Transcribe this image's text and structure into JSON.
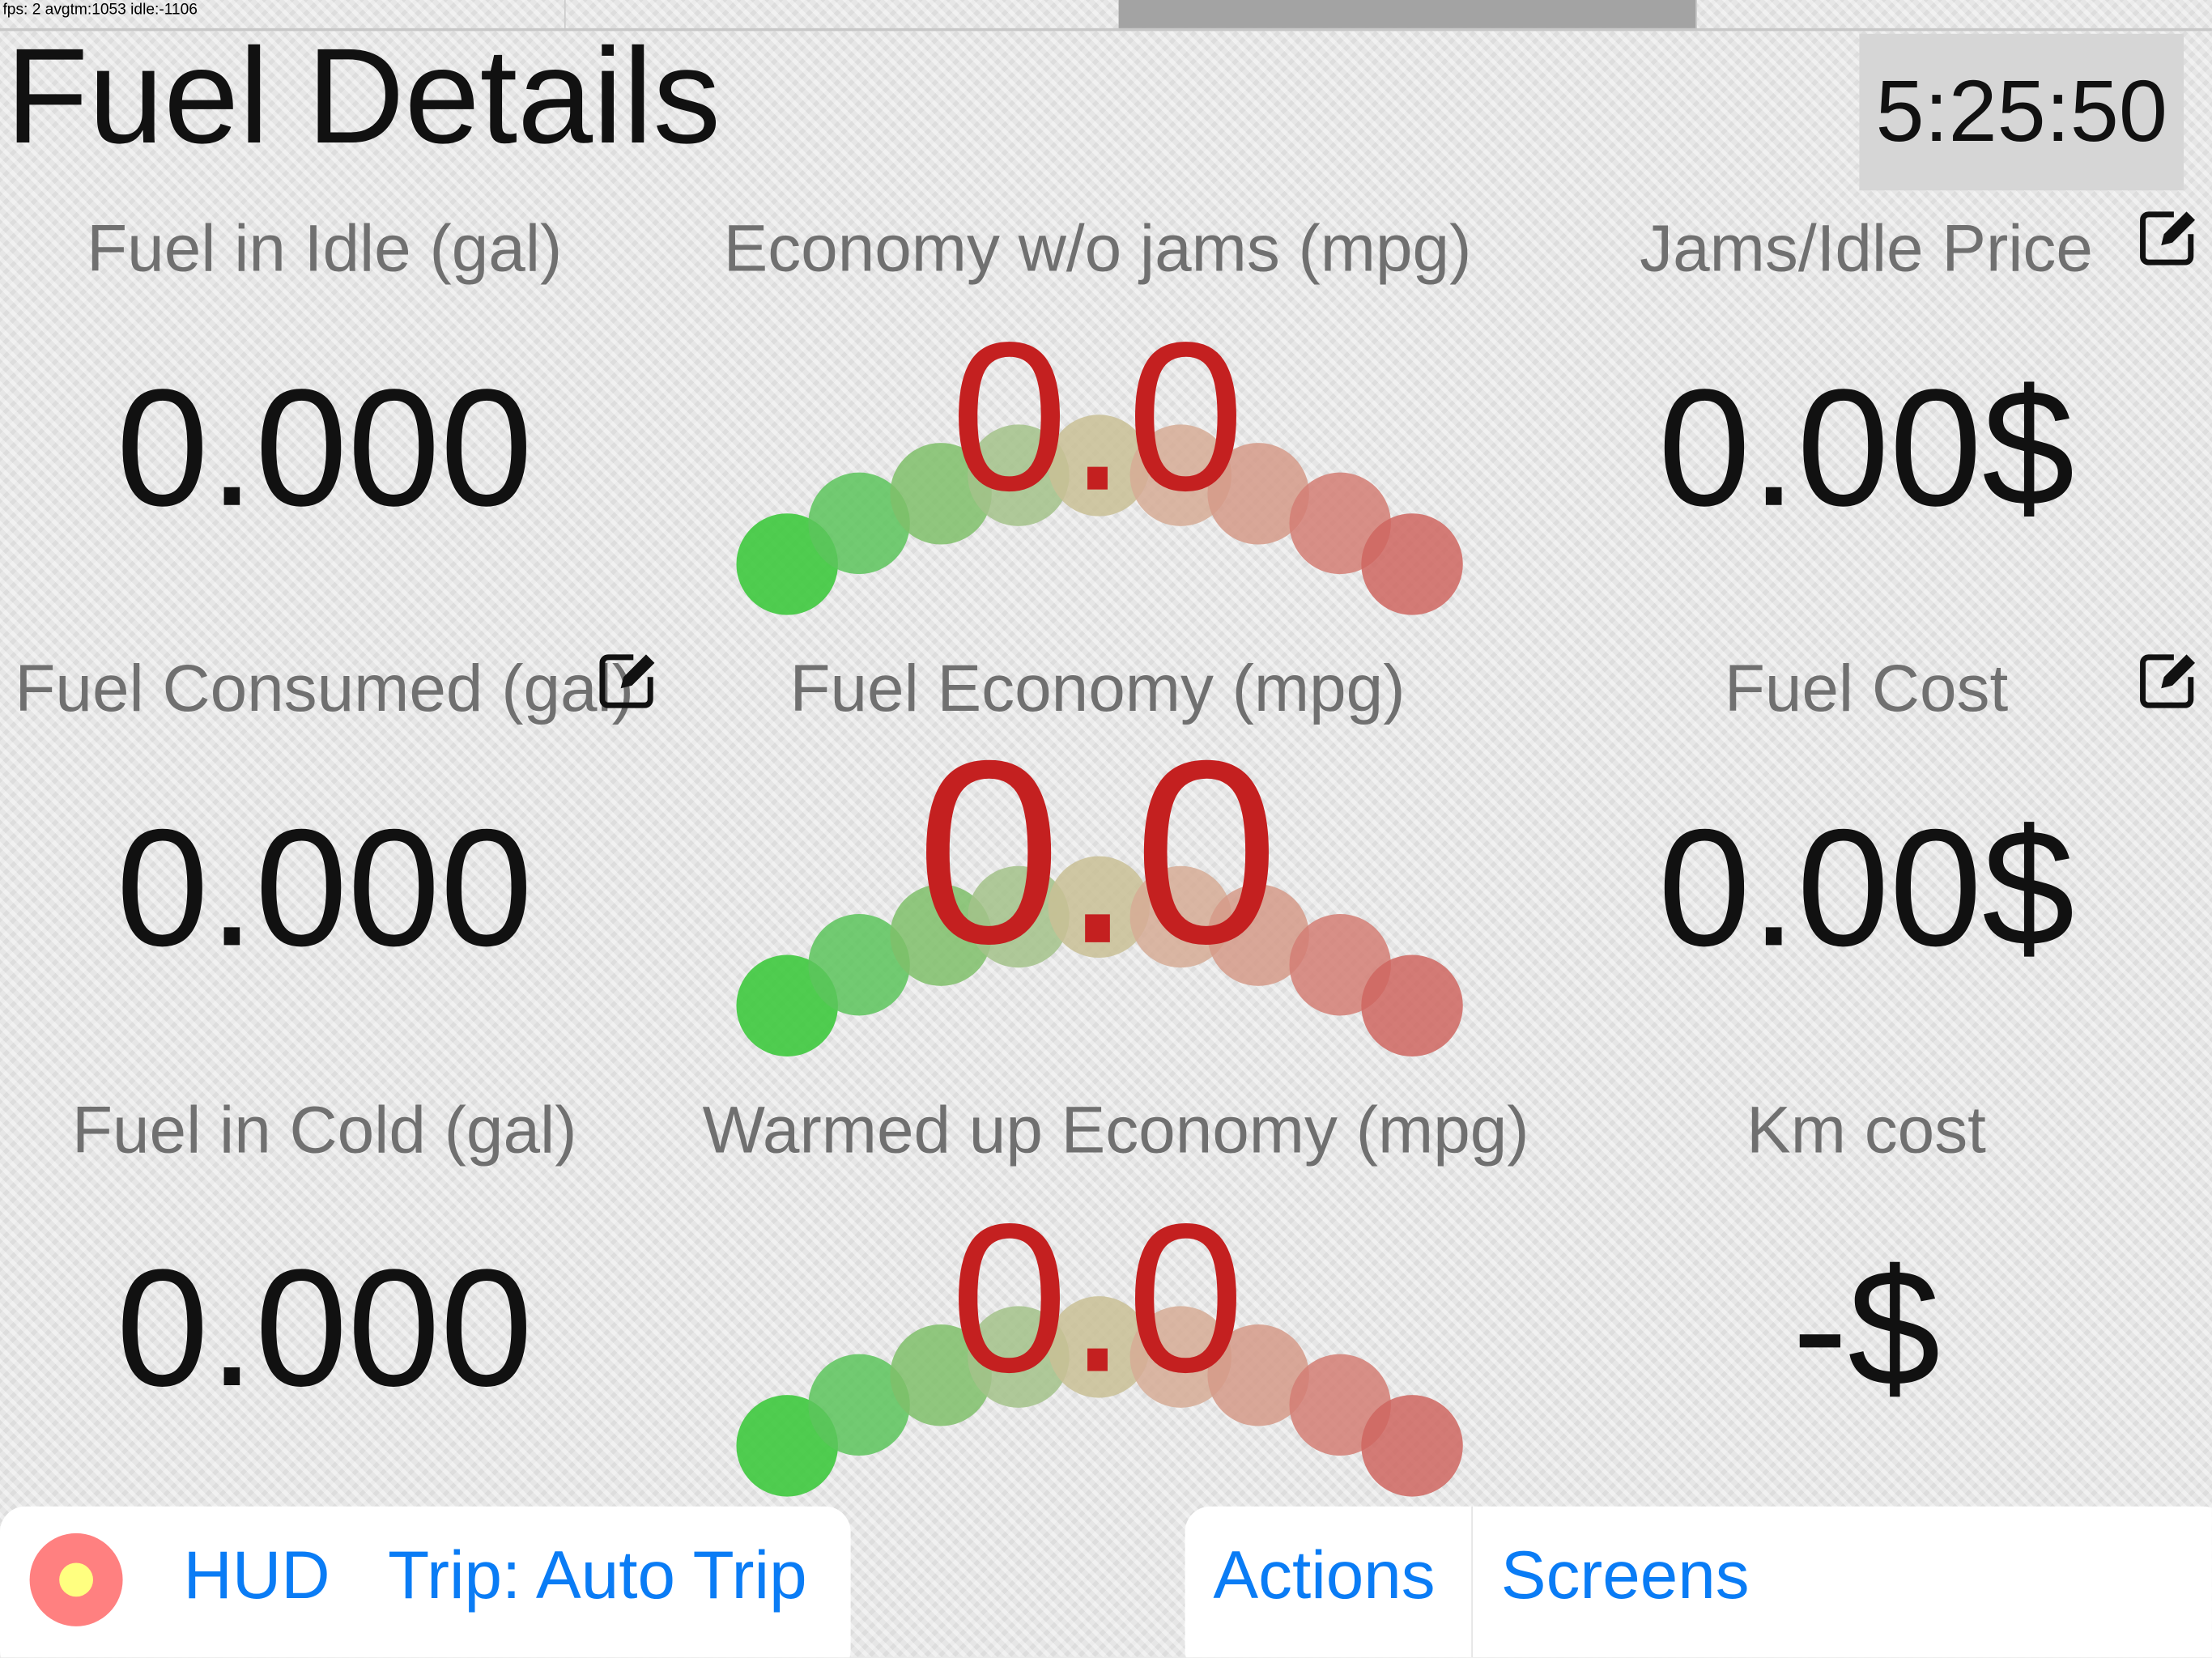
{
  "status_bar": {
    "fps_text": "fps: 2 avgtm:1053 idle:-1106"
  },
  "header": {
    "title": "Fuel Details",
    "clock": "5:25:50"
  },
  "cells": [
    {
      "label": "Fuel in Idle (gal)",
      "value": "0.000"
    },
    {
      "label": "Economy w/o jams (mpg)",
      "value": "0.0",
      "type": "gauge"
    },
    {
      "label": "Jams/Idle Price",
      "value": "0.00$",
      "editable": true
    },
    {
      "label": "Fuel Consumed (gal)",
      "value": "0.000",
      "editable": true
    },
    {
      "label": "Fuel Economy (mpg)",
      "value": "0.0",
      "type": "gauge"
    },
    {
      "label": "Fuel Cost",
      "value": "0.00$",
      "editable": true
    },
    {
      "label": "Fuel in Cold (gal)",
      "value": "0.000"
    },
    {
      "label": "Warmed up Economy (mpg)",
      "value": "0.0",
      "type": "gauge"
    },
    {
      "label": "Km cost",
      "value": "-$"
    }
  ],
  "gauge_colors": [
    "#3ec93e",
    "#5cc45c",
    "#7fbf6a",
    "#a3c28a",
    "#c9bf95",
    "#d6ab95",
    "#d59a88",
    "#d47e74",
    "#cf6660"
  ],
  "toolbar": {
    "record_icon": "record-icon",
    "hud": "HUD",
    "trip": "Trip: Auto Trip",
    "actions": "Actions",
    "screens": "Screens"
  },
  "colors": {
    "accent": "#0a7cf5",
    "gauge_value": "#c42020",
    "record_outer": "#ff8080",
    "record_inner": "#ffff80"
  }
}
